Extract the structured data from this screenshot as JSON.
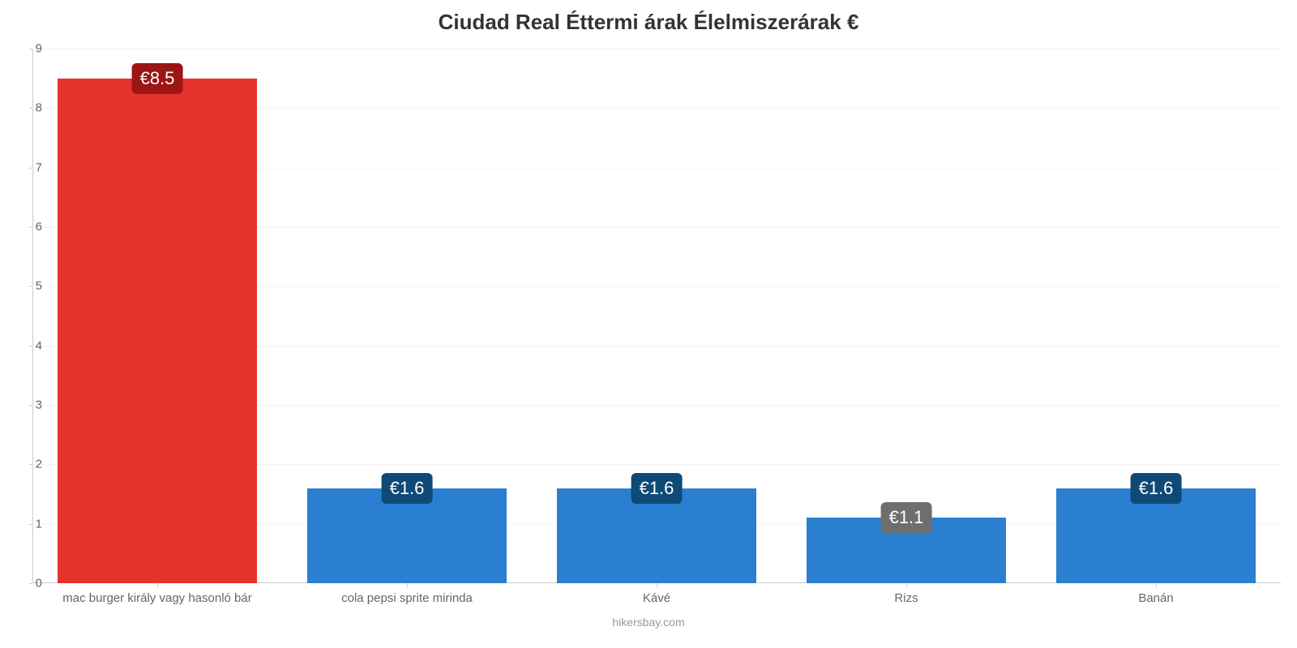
{
  "chart": {
    "type": "bar",
    "title": "Ciudad Real Éttermi árak Élelmiszerárak €",
    "title_fontsize": 26,
    "title_color": "#333333",
    "credit": "hikersbay.com",
    "credit_fontsize": 14,
    "credit_color": "#999999",
    "background_color": "#ffffff",
    "grid_color": "#f3f3f3",
    "axis_color": "#cccccc",
    "axis_label_color": "#666666",
    "axis_label_fontsize": 15,
    "value_label_fontsize": 22,
    "value_label_color": "#ffffff",
    "y": {
      "min": 0,
      "max": 9,
      "tick_step": 1,
      "ticks": [
        0,
        1,
        2,
        3,
        4,
        5,
        6,
        7,
        8,
        9
      ]
    },
    "bar_width_ratio": 0.8,
    "categories": [
      "mac burger király vagy hasonló bár",
      "cola pepsi sprite mirinda",
      "Kávé",
      "Rizs",
      "Banán"
    ],
    "values": [
      8.5,
      1.6,
      1.6,
      1.1,
      1.6
    ],
    "value_labels": [
      "€8.5",
      "€1.6",
      "€1.6",
      "€1.1",
      "€1.6"
    ],
    "bar_colors": [
      "#e6332c",
      "#2a7fd0",
      "#2a7fd0",
      "#2a7fd0",
      "#2a7fd0"
    ],
    "chip_bg_colors": [
      "#9c1515",
      "#0f4a76",
      "#0f4a76",
      "#6e6e6e",
      "#0f4a76"
    ]
  }
}
